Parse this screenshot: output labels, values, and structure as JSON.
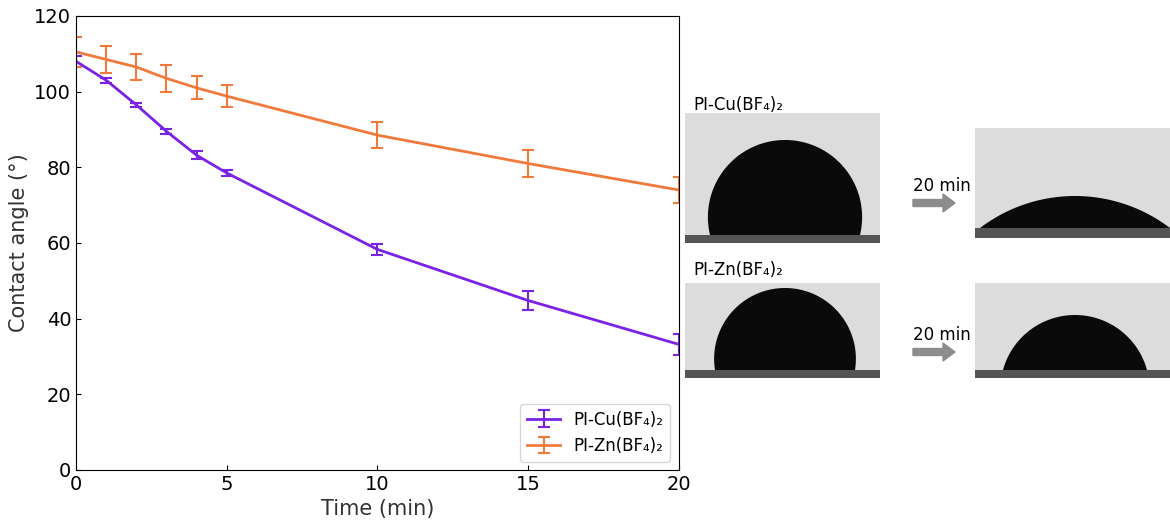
{
  "chart_data": {
    "type": "line",
    "x_label": "Time (min)",
    "y_label": "Contact angle (°)",
    "x": [
      0,
      1,
      2,
      3,
      4,
      5,
      10,
      15,
      20
    ],
    "series": [
      {
        "name": "PI-Cu(BF₄)₂",
        "color": "#7a22e6",
        "values": [
          108,
          103,
          96.5,
          89.5,
          83.2,
          78.5,
          58.3,
          44.8,
          33.2
        ],
        "error": [
          1.5,
          0.6,
          0.5,
          0.6,
          1.0,
          0.8,
          1.5,
          2.5,
          2.8
        ]
      },
      {
        "name": "PI-Zn(BF₄)₂",
        "color": "#f07a3c",
        "values": [
          110.5,
          108.5,
          106.5,
          103.5,
          101,
          98.8,
          88.5,
          81,
          74
        ],
        "error": [
          4,
          3.5,
          3.5,
          3.5,
          3,
          3,
          3.5,
          3.5,
          3.5
        ]
      }
    ],
    "xlim": [
      0,
      20
    ],
    "xticks": [
      0,
      5,
      10,
      15,
      20
    ],
    "ylim": [
      0,
      120
    ],
    "yticks": [
      0,
      20,
      40,
      60,
      80,
      100,
      120
    ],
    "legend": "lower right"
  },
  "photos": [
    {
      "label": "PI-Cu(BF₄)₂",
      "arrow": "20 min"
    },
    {
      "label": "PI-Zn(BF₄)₂",
      "arrow": "20 min"
    }
  ]
}
